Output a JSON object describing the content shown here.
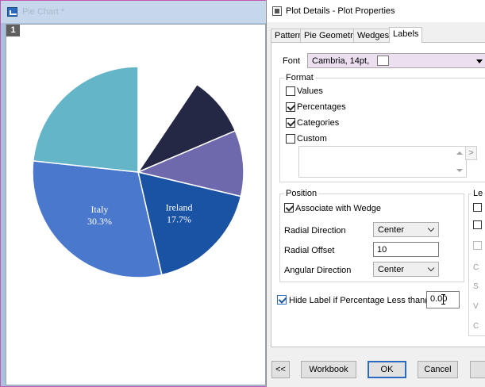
{
  "graph_window": {
    "title": "Pie Chart *",
    "layer_number": "1"
  },
  "chart_data": {
    "type": "pie",
    "slices": [
      {
        "category": "",
        "percent": 9.4,
        "color": "#ffffff",
        "label": ""
      },
      {
        "category": "",
        "percent": 9.2,
        "color": "#252845",
        "label": ""
      },
      {
        "category": "",
        "percent": 10.1,
        "color": "#6e69ad",
        "label": ""
      },
      {
        "category": "Ireland",
        "percent": 17.7,
        "color": "#1a53a3",
        "label": "Ireland\n17.7%"
      },
      {
        "category": "Italy",
        "percent": 30.3,
        "color": "#4a78cc",
        "label": "Italy\n30.3%"
      },
      {
        "category": "",
        "percent": 23.3,
        "color": "#64b5c8",
        "label": ""
      }
    ],
    "start_angle": "12 o'clock",
    "direction": "clockwise",
    "slice_edge_color": "#ffffff",
    "background": "#ffffff",
    "outline_color": "#cccccc"
  },
  "dialog": {
    "title": "Plot Details - Plot Properties",
    "tabs": [
      "Pattern",
      "Pie Geometry",
      "Wedges",
      "Labels"
    ],
    "active_tab": "Labels",
    "font": {
      "label": "Font",
      "value": "Cambria, 14pt,"
    },
    "format": {
      "title": "Format",
      "options": [
        {
          "label": "Values",
          "checked": false
        },
        {
          "label": "Percentages",
          "checked": true
        },
        {
          "label": "Categories",
          "checked": true
        },
        {
          "label": "Custom",
          "checked": false
        }
      ]
    },
    "position": {
      "title": "Position",
      "associate_label": "Associate with Wedge",
      "associate_checked": true,
      "radial_direction_label": "Radial Direction",
      "radial_direction_value": "Center",
      "radial_offset_label": "Radial Offset",
      "radial_offset_value": "10",
      "angular_direction_label": "Angular Direction",
      "angular_direction_value": "Center"
    },
    "cut_group": {
      "title": "Le",
      "fragments": [
        "C",
        "S",
        "V",
        "C"
      ]
    },
    "hide_label": {
      "label": "Hide Label if Percentage Less than(%)",
      "checked": true,
      "value": "0.00"
    },
    "buttons": {
      "prev": "<<",
      "workbook": "Workbook",
      "ok": "OK",
      "cancel": "Cancel"
    },
    "scroll_right_glyph": ">"
  }
}
